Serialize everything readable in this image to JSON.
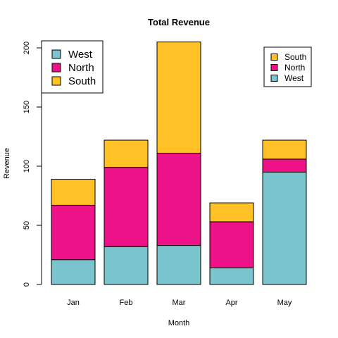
{
  "chart_data": {
    "type": "bar",
    "stacked": true,
    "title": "Total Revenue",
    "xlabel": "Month",
    "ylabel": "Revenue",
    "categories": [
      "Jan",
      "Feb",
      "Mar",
      "Apr",
      "May"
    ],
    "series": [
      {
        "name": "West",
        "color": "#7AC5CD",
        "values": [
          21,
          32,
          33,
          14,
          95
        ]
      },
      {
        "name": "North",
        "color": "#EE1289",
        "values": [
          46,
          67,
          78,
          39,
          11
        ]
      },
      {
        "name": "South",
        "color": "#FFC125",
        "values": [
          22,
          23,
          94,
          16,
          16
        ]
      }
    ],
    "ylim": [
      0,
      200
    ],
    "yticks": [
      0,
      50,
      100,
      150,
      200
    ],
    "grid": false,
    "legends": [
      {
        "placement": "top-left",
        "entries": [
          "West",
          "North",
          "South"
        ]
      },
      {
        "placement": "top-right",
        "entries": [
          "South",
          "North",
          "West"
        ]
      }
    ]
  }
}
